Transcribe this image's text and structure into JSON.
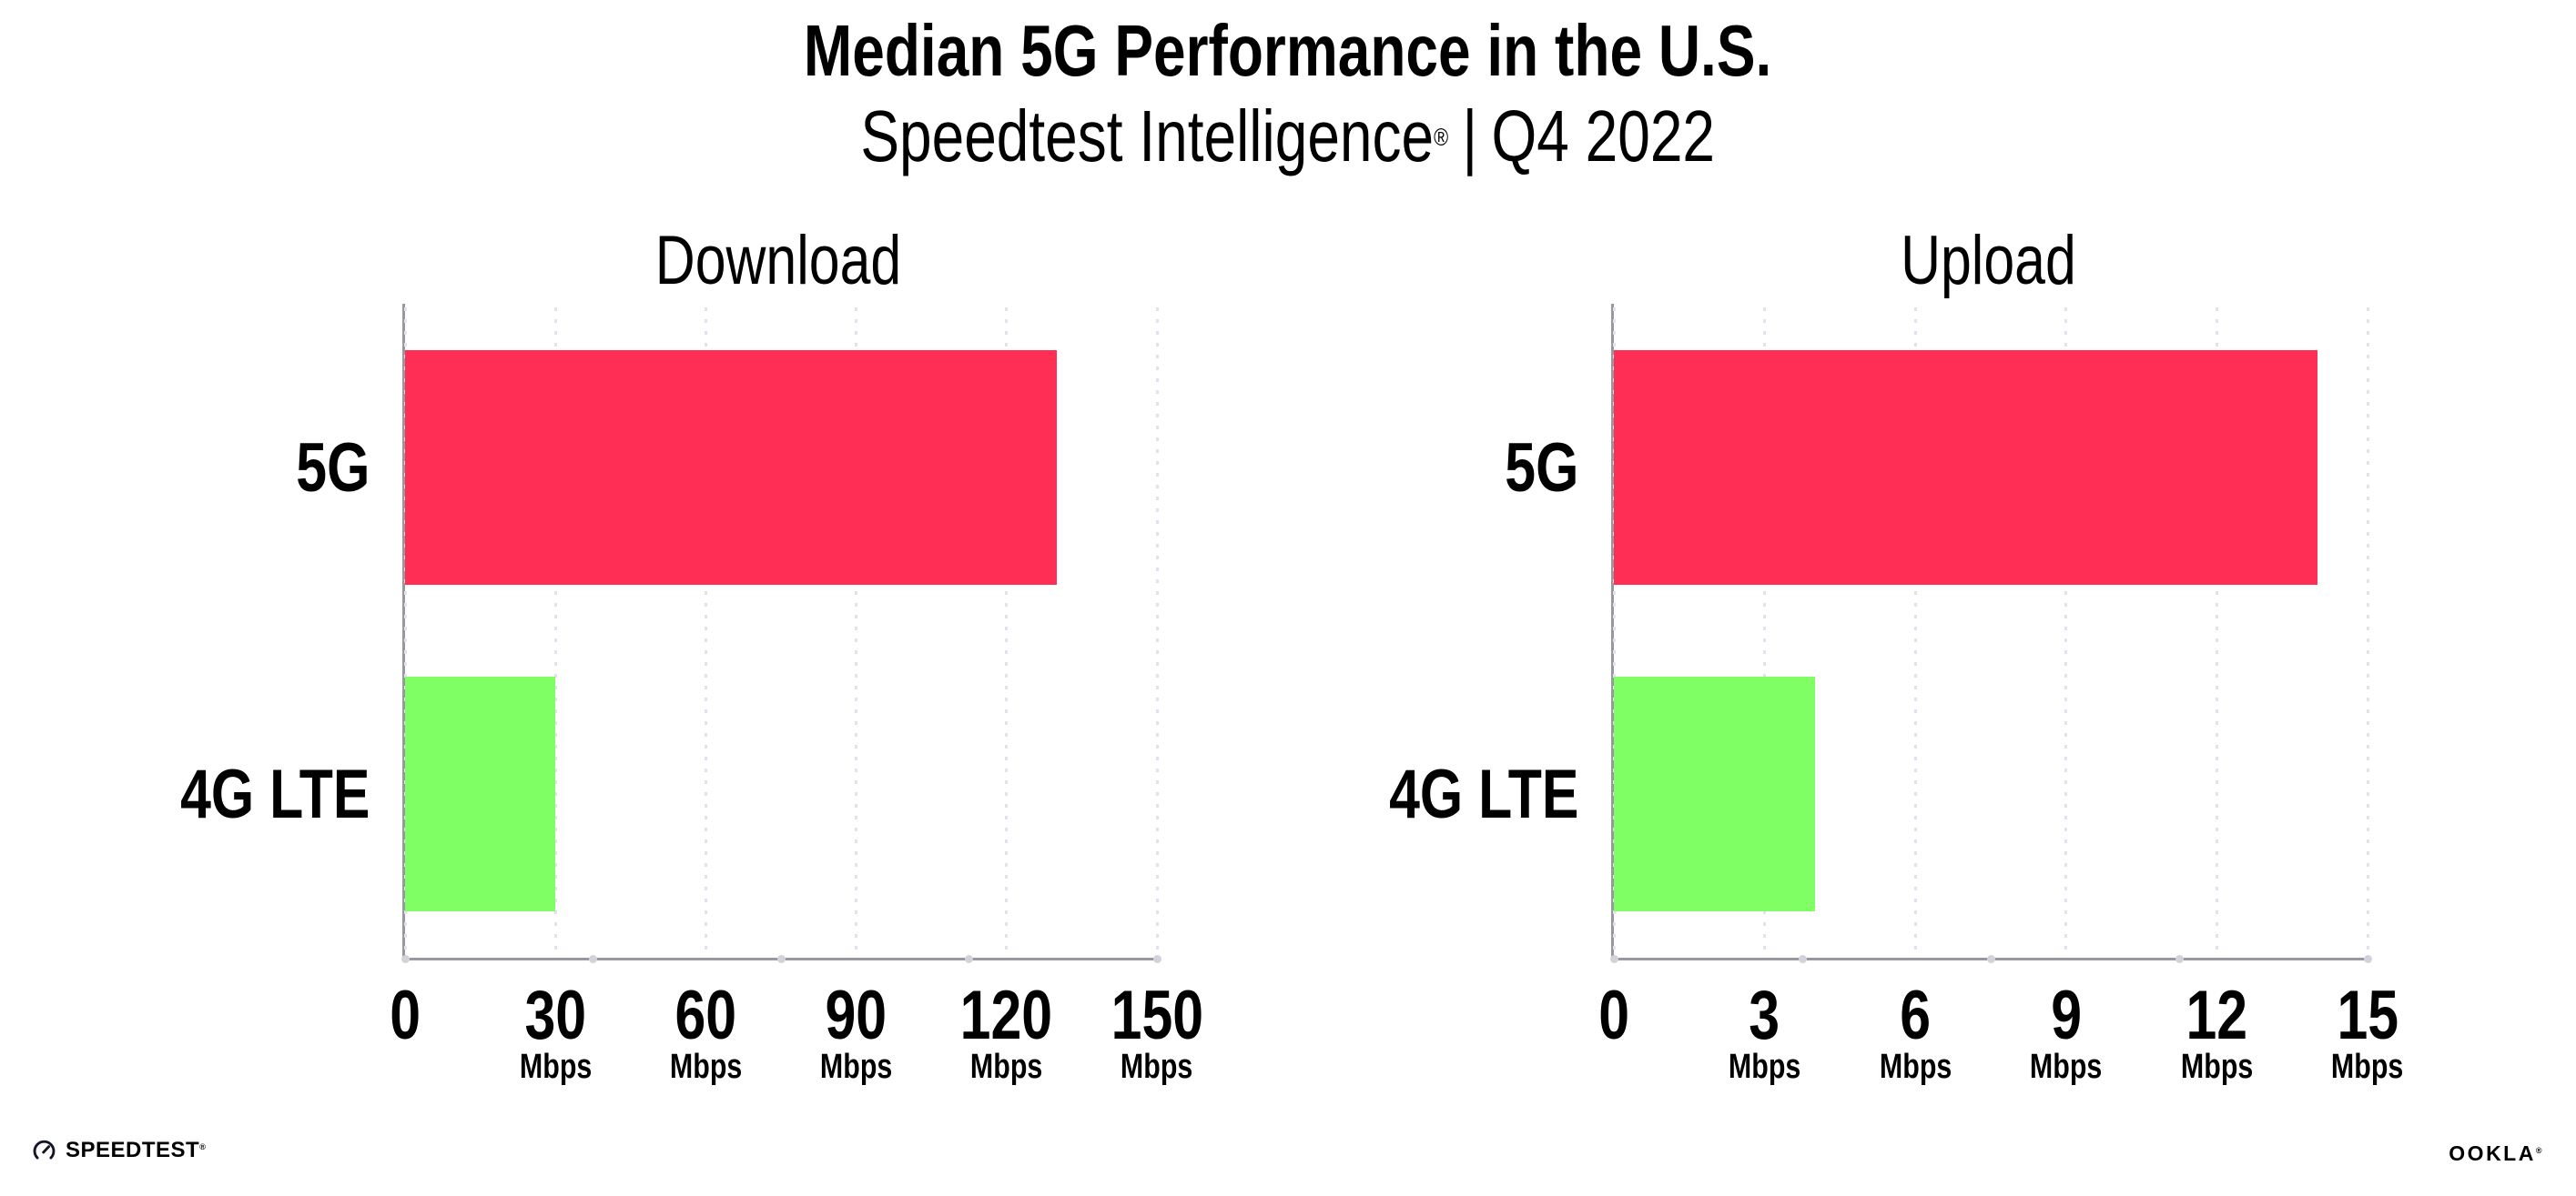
{
  "page": {
    "background": "#FFFFFF"
  },
  "header": {
    "title": "Median 5G Performance in the U.S.",
    "subtitle_brand": "Speedtest Intelligence",
    "subtitle_reg": "®",
    "subtitle_sep": "|",
    "subtitle_period": "Q4 2022"
  },
  "colors": {
    "bar_5g": "#FF2E55",
    "bar_4g_lte": "#7FFF63",
    "axis": "#98989E",
    "gridline": "#E2E2EE",
    "tick_dot": "#D2D2DC",
    "text": "#000000",
    "background": "#FFFFFF"
  },
  "chart_data": [
    {
      "type": "bar",
      "orientation": "horizontal",
      "title": "Download",
      "categories": [
        "5G",
        "4G LTE"
      ],
      "values": [
        130,
        30
      ],
      "unit": "Mbps",
      "xlabel": "",
      "ylabel": "",
      "xlim": [
        0,
        150
      ],
      "xticks": [
        0,
        30,
        60,
        90,
        120,
        150
      ],
      "bar_colors": [
        "#FF2E55",
        "#7FFF63"
      ],
      "grid": "dotted-vertical",
      "legend": "none"
    },
    {
      "type": "bar",
      "orientation": "horizontal",
      "title": "Upload",
      "categories": [
        "5G",
        "4G LTE"
      ],
      "values": [
        14,
        4
      ],
      "unit": "Mbps",
      "xlabel": "",
      "ylabel": "",
      "xlim": [
        0,
        15
      ],
      "xticks": [
        0,
        3,
        6,
        9,
        12,
        15
      ],
      "bar_colors": [
        "#FF2E55",
        "#7FFF63"
      ],
      "grid": "dotted-vertical",
      "legend": "none"
    }
  ],
  "footer": {
    "speedtest_logo_text": "SPEEDTEST",
    "speedtest_logo_mark": "®",
    "ookla_logo_text": "OOKLA",
    "ookla_logo_mark": "®"
  }
}
